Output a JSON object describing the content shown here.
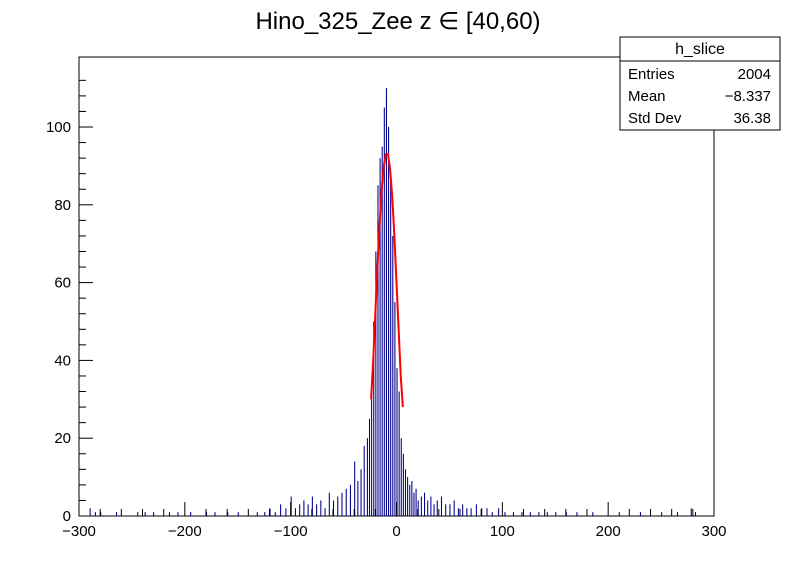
{
  "chart_data": {
    "type": "bar",
    "title": "Hino_325_Zee z  ∈ [40,60)",
    "xlim": [
      -300,
      300
    ],
    "ylim": [
      0,
      118
    ],
    "x_ticks": [
      -300,
      -200,
      -100,
      0,
      100,
      200,
      300
    ],
    "x_tick_labels": [
      "−300",
      "−200",
      "−100",
      "0",
      "100",
      "200",
      "300"
    ],
    "y_ticks": [
      0,
      20,
      40,
      60,
      80,
      100
    ],
    "y_tick_labels": [
      "0",
      "20",
      "40",
      "60",
      "80",
      "100"
    ],
    "histogram": {
      "bin_width": 1,
      "color": "#00008b",
      "x": [
        -290,
        -285,
        -280,
        -265,
        -245,
        -238,
        -230,
        -215,
        -207,
        -195,
        -180,
        -172,
        -160,
        -150,
        -132,
        -125,
        -120,
        -115,
        -110,
        -105,
        -100,
        -96,
        -92,
        -88,
        -84,
        -80,
        -76,
        -72,
        -68,
        -64,
        -60,
        -56,
        -52,
        -48,
        -44,
        -40,
        -37,
        -34,
        -31,
        -28,
        -26,
        -24,
        -22,
        -20,
        -18,
        -16,
        -14,
        -12,
        -10,
        -8,
        -6,
        -4,
        -2,
        0,
        2,
        4,
        6,
        8,
        10,
        12,
        14,
        16,
        18,
        20,
        23,
        26,
        29,
        32,
        35,
        38,
        42,
        46,
        50,
        54,
        58,
        62,
        66,
        70,
        75,
        80,
        85,
        90,
        96,
        102,
        110,
        118,
        126,
        134,
        142,
        150,
        160,
        170,
        185,
        210,
        230,
        250,
        265,
        278,
        282
      ],
      "values": [
        2,
        1,
        1,
        1,
        1,
        1,
        1,
        1,
        1,
        1,
        1,
        1,
        1,
        1,
        1,
        1,
        2,
        1,
        3,
        2,
        5,
        2,
        3,
        4,
        3,
        5,
        3,
        4,
        2,
        6,
        4,
        5,
        6,
        7,
        8,
        14,
        9,
        12,
        18,
        20,
        25,
        35,
        50,
        68,
        85,
        92,
        95,
        105,
        110,
        100,
        88,
        72,
        55,
        38,
        32,
        20,
        16,
        12,
        10,
        8,
        9,
        6,
        7,
        4,
        5,
        6,
        4,
        5,
        3,
        4,
        5,
        3,
        3,
        4,
        2,
        3,
        2,
        2,
        3,
        2,
        2,
        1,
        2,
        1,
        1,
        1,
        1,
        1,
        1,
        1,
        1,
        1,
        1,
        1,
        1,
        1,
        1,
        2,
        1
      ]
    },
    "fit": {
      "color": "#ff0000",
      "x": [
        -24,
        -22,
        -20,
        -18,
        -16,
        -14,
        -12,
        -10,
        -8,
        -6,
        -4,
        -2,
        0,
        2,
        4,
        6
      ],
      "values": [
        30,
        40,
        52,
        64,
        75,
        84,
        90,
        93,
        93,
        89,
        82,
        72,
        60,
        48,
        36,
        28
      ]
    },
    "stats_box": {
      "title": "h_slice",
      "rows": [
        {
          "label": "Entries",
          "value": "2004"
        },
        {
          "label": "Mean",
          "value": "−8.337"
        },
        {
          "label": "Std Dev",
          "value": "36.38"
        }
      ]
    }
  }
}
